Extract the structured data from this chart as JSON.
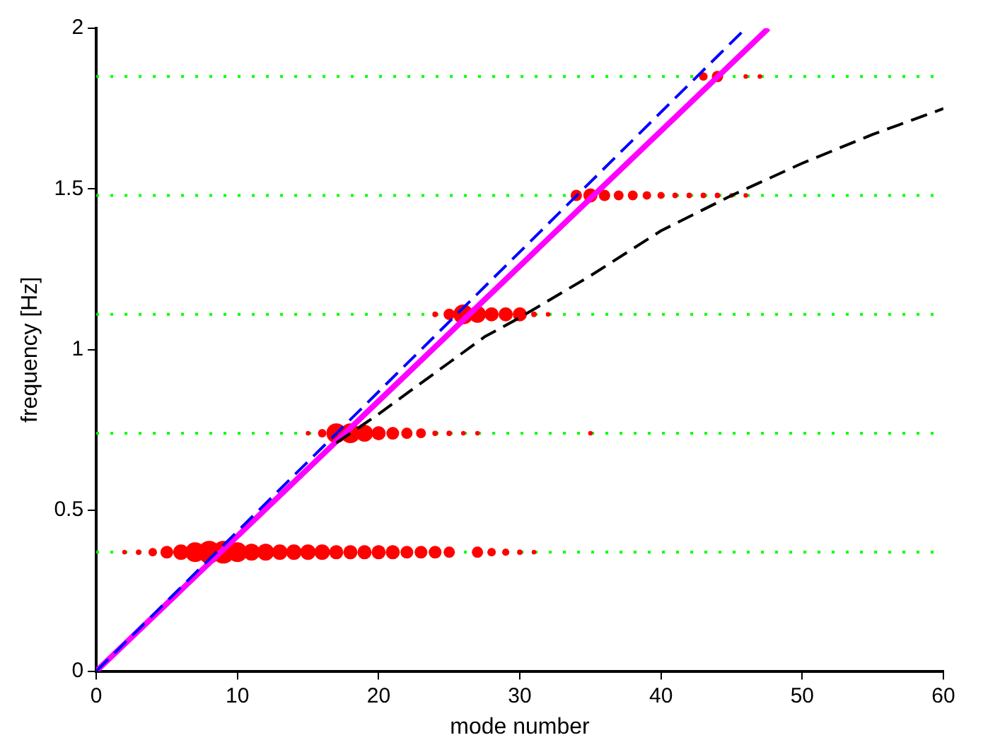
{
  "chart_data": {
    "type": "line",
    "xlabel": "mode number",
    "ylabel": "frequency [Hz]",
    "xlim": [
      0,
      60
    ],
    "ylim": [
      0,
      2
    ],
    "xticks": [
      0,
      10,
      20,
      30,
      40,
      50,
      60
    ],
    "yticks": [
      0,
      0.5,
      1,
      1.5,
      2
    ],
    "grid": false,
    "legend": false,
    "ref_lines": [
      {
        "axis": "y",
        "value": 0.37,
        "color": "#00ff00",
        "line_style": "dotted"
      },
      {
        "axis": "y",
        "value": 0.74,
        "color": "#00ff00",
        "line_style": "dotted"
      },
      {
        "axis": "y",
        "value": 1.11,
        "color": "#00ff00",
        "line_style": "dotted"
      },
      {
        "axis": "y",
        "value": 1.48,
        "color": "#00ff00",
        "line_style": "dotted"
      },
      {
        "axis": "y",
        "value": 1.85,
        "color": "#00ff00",
        "line_style": "dotted"
      }
    ],
    "series": [
      {
        "type": "bubble",
        "color": "#ff0000",
        "x": [
          2,
          3,
          4,
          5,
          6,
          7,
          8,
          9,
          10,
          11,
          12,
          13,
          14,
          15,
          16,
          17,
          18,
          19,
          20,
          21,
          22,
          23,
          24,
          25,
          27,
          28,
          29,
          30,
          31,
          15,
          16,
          17,
          18,
          19,
          20,
          21,
          22,
          23,
          24,
          25,
          26,
          27,
          35,
          24,
          25,
          26,
          27,
          28,
          29,
          30,
          31,
          32,
          34,
          35,
          36,
          37,
          38,
          39,
          40,
          41,
          42,
          43,
          44,
          45,
          46,
          43,
          44,
          46,
          47
        ],
        "values": [
          0.37,
          0.37,
          0.37,
          0.37,
          0.37,
          0.37,
          0.37,
          0.37,
          0.37,
          0.37,
          0.37,
          0.37,
          0.37,
          0.37,
          0.37,
          0.37,
          0.37,
          0.37,
          0.37,
          0.37,
          0.37,
          0.37,
          0.37,
          0.37,
          0.37,
          0.37,
          0.37,
          0.37,
          0.37,
          0.74,
          0.74,
          0.74,
          0.74,
          0.74,
          0.74,
          0.74,
          0.74,
          0.74,
          0.74,
          0.74,
          0.74,
          0.74,
          0.74,
          1.11,
          1.11,
          1.11,
          1.11,
          1.11,
          1.11,
          1.11,
          1.11,
          1.11,
          1.48,
          1.48,
          1.48,
          1.48,
          1.48,
          1.48,
          1.48,
          1.48,
          1.48,
          1.48,
          1.48,
          1.48,
          1.48,
          1.85,
          1.85,
          1.85,
          1.85
        ],
        "sizes": [
          0.04,
          0.06,
          0.14,
          0.32,
          0.47,
          0.77,
          1,
          1,
          0.77,
          0.56,
          0.56,
          0.47,
          0.47,
          0.47,
          0.47,
          0.39,
          0.39,
          0.39,
          0.39,
          0.39,
          0.32,
          0.32,
          0.32,
          0.25,
          0.25,
          0.14,
          0.1,
          0.06,
          0.04,
          0.04,
          0.14,
          0.77,
          0.77,
          0.56,
          0.39,
          0.32,
          0.25,
          0.19,
          0.06,
          0.06,
          0.04,
          0.04,
          0.04,
          0.06,
          0.25,
          0.77,
          0.56,
          0.39,
          0.39,
          0.39,
          0.06,
          0.04,
          0.25,
          0.39,
          0.25,
          0.19,
          0.19,
          0.14,
          0.1,
          0.06,
          0.06,
          0.06,
          0.06,
          0.04,
          0.04,
          0.14,
          0.25,
          0.04,
          0.04
        ]
      },
      {
        "type": "line",
        "color": "#0000ff",
        "line_style": "dashed",
        "x": [
          0,
          46
        ],
        "values": [
          0,
          2
        ]
      },
      {
        "color": "#000000",
        "line_style": "dashed",
        "x": [
          17,
          20,
          25,
          27.5,
          30,
          35,
          40,
          45,
          50,
          55,
          60
        ],
        "values": [
          0.71,
          0.8,
          0.96,
          1.04,
          1.1,
          1.23,
          1.37,
          1.48,
          1.58,
          1.67,
          1.75
        ]
      },
      {
        "type": "line",
        "color": "#ff00ff",
        "line_style": "solid",
        "x": [
          0,
          47.6
        ],
        "values": [
          0,
          2
        ]
      }
    ]
  }
}
